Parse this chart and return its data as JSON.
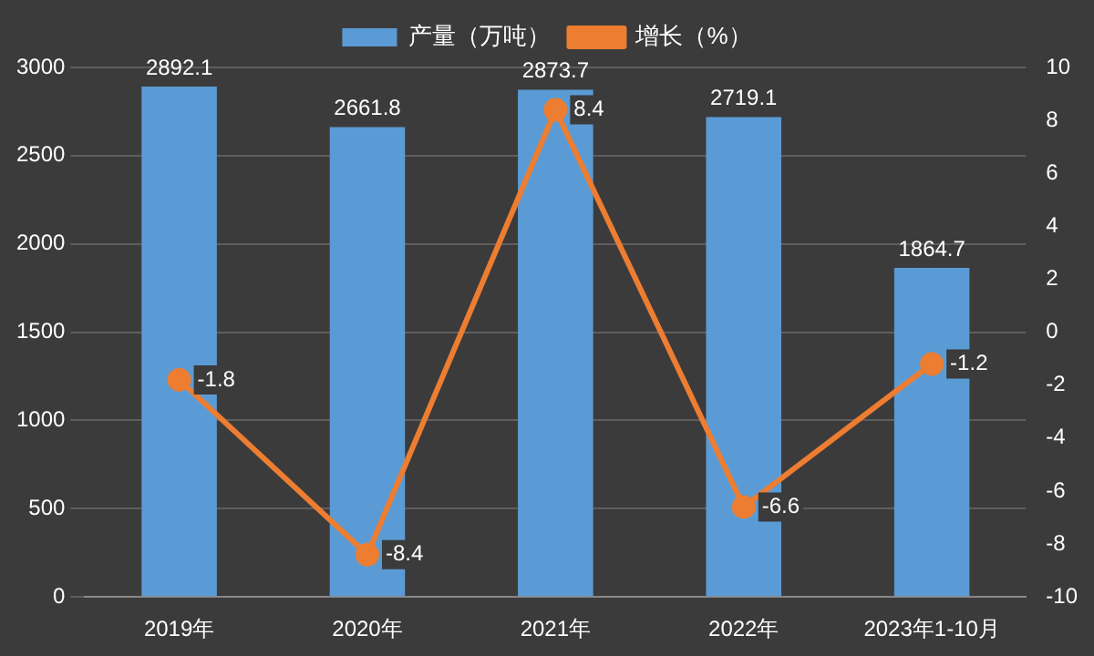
{
  "chart_data": {
    "type": "bar",
    "categories": [
      "2019年",
      "2020年",
      "2021年",
      "2022年",
      "2023年1-10月"
    ],
    "series": [
      {
        "name": "产量（万吨）",
        "color": "#5b9bd5",
        "values": [
          2892.1,
          2661.8,
          2873.7,
          2719.1,
          1864.7
        ]
      },
      {
        "name": "增长（%）",
        "type": "line",
        "axis": "y2",
        "color": "#ed7d31",
        "values": [
          -1.8,
          -8.4,
          8.4,
          -6.6,
          -1.2
        ]
      }
    ],
    "ylim": [
      0,
      3000
    ],
    "yticks": [
      0,
      500,
      1000,
      1500,
      2000,
      2500,
      3000
    ],
    "y2lim": [
      -10,
      10
    ],
    "y2ticks": [
      -10,
      -8,
      -6,
      -4,
      -2,
      0,
      2,
      4,
      6,
      8,
      10
    ],
    "grid": "y",
    "legend": "top",
    "marker": "circle",
    "line_style": "solid",
    "data_labels": true
  }
}
